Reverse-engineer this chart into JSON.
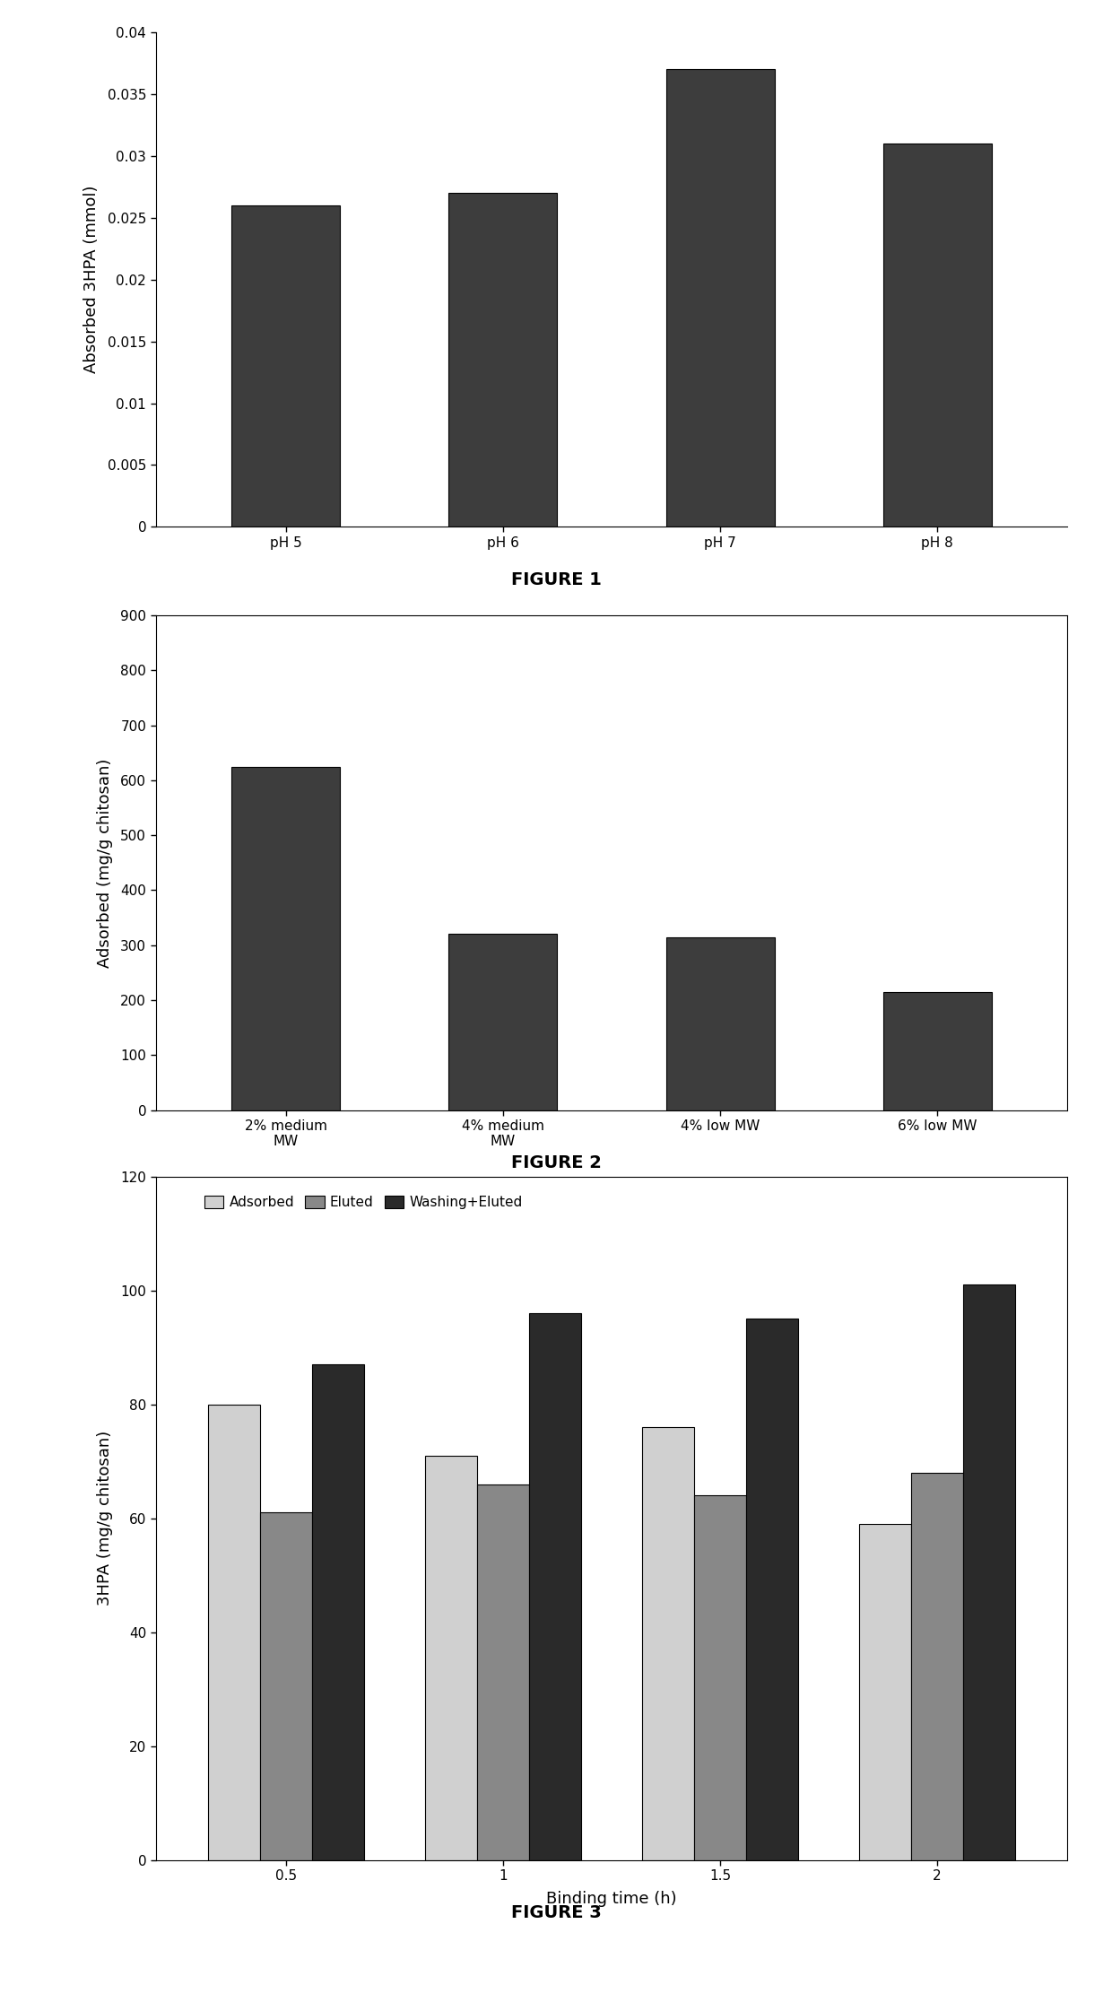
{
  "fig1": {
    "categories": [
      "pH 5",
      "pH 6",
      "pH 7",
      "pH 8"
    ],
    "values": [
      0.026,
      0.027,
      0.037,
      0.031
    ],
    "ylabel": "Absorbed 3HPA (mmol)",
    "ylim": [
      0,
      0.04
    ],
    "yticks": [
      0,
      0.005,
      0.01,
      0.015,
      0.02,
      0.025,
      0.03,
      0.035,
      0.04
    ],
    "ytick_labels": [
      "0",
      "0.005",
      "0.01",
      "0.015",
      "0.02",
      "0.025",
      "0.03",
      "0.035",
      "0.04"
    ],
    "bar_color": "#3d3d3d",
    "figure_label": "FIGURE 1"
  },
  "fig2": {
    "categories": [
      "2% medium\nMW",
      "4% medium\nMW",
      "4% low MW",
      "6% low MW"
    ],
    "values": [
      625,
      320,
      315,
      215
    ],
    "ylabel": "Adsorbed (mg/g chitosan)",
    "ylim": [
      0,
      900
    ],
    "yticks": [
      0,
      100,
      200,
      300,
      400,
      500,
      600,
      700,
      800,
      900
    ],
    "ytick_labels": [
      "0",
      "100",
      "200",
      "300",
      "400",
      "500",
      "600",
      "700",
      "800",
      "900"
    ],
    "bar_color": "#3d3d3d",
    "figure_label": "FIGURE 2",
    "has_border": true
  },
  "fig3": {
    "categories": [
      "0.5",
      "1",
      "1.5",
      "2"
    ],
    "xlabel": "Binding time (h)",
    "series_names": [
      "Adsorbed",
      "Eluted",
      "Washing+Eluted"
    ],
    "series_values": {
      "Adsorbed": [
        80,
        71,
        76,
        59
      ],
      "Eluted": [
        61,
        66,
        64,
        68
      ],
      "Washing+Eluted": [
        87,
        96,
        95,
        101
      ]
    },
    "colors": {
      "Adsorbed": "#d0d0d0",
      "Eluted": "#888888",
      "Washing+Eluted": "#2a2a2a"
    },
    "ylabel": "3HPA (mg/g chitosan)",
    "ylim": [
      0,
      120
    ],
    "yticks": [
      0,
      20,
      40,
      60,
      80,
      100,
      120
    ],
    "ytick_labels": [
      "0",
      "20",
      "40",
      "60",
      "80",
      "100",
      "120"
    ],
    "figure_label": "FIGURE 3",
    "has_border": true
  },
  "background_color": "#ffffff",
  "bar_edge_color": "#000000",
  "spine_color": "#000000",
  "figure_label_fontsize": 14,
  "axis_label_fontsize": 13,
  "tick_fontsize": 11
}
